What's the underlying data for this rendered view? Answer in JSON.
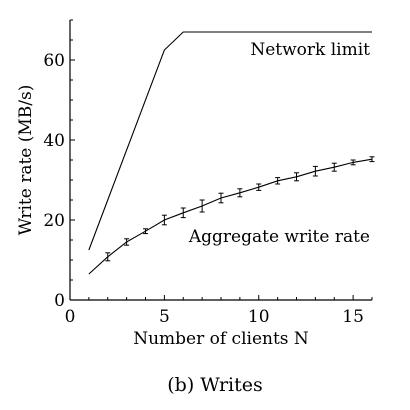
{
  "chart_data": {
    "type": "line",
    "title": "",
    "xlabel": "Number of clients N",
    "ylabel": "Write rate (MB/s)",
    "xlim": [
      0,
      16
    ],
    "ylim": [
      0,
      70
    ],
    "xticks": [
      0,
      5,
      10,
      15
    ],
    "yticks": [
      0,
      20,
      40,
      60
    ],
    "grid": false,
    "legend": "none",
    "series": [
      {
        "name": "Network limit",
        "style": "line",
        "x": [
          1,
          5,
          6,
          16
        ],
        "y": [
          12.5,
          62.5,
          67,
          67
        ]
      },
      {
        "name": "Aggregate write rate",
        "style": "line-errorbars",
        "x": [
          1,
          2,
          3,
          4,
          5,
          6,
          7,
          8,
          9,
          10,
          11,
          12,
          13,
          14,
          15,
          16
        ],
        "y": [
          6.5,
          10.8,
          14.5,
          17.2,
          20.0,
          21.8,
          23.5,
          25.5,
          26.8,
          28.2,
          29.8,
          30.8,
          32.2,
          33.2,
          34.4,
          35.2
        ],
        "err": [
          0,
          1.0,
          0.8,
          0.6,
          1.2,
          1.2,
          1.5,
          1.2,
          1.0,
          0.8,
          0.8,
          1.0,
          1.2,
          1.0,
          0.6,
          0.6
        ]
      }
    ]
  },
  "caption": "(b) Writes"
}
